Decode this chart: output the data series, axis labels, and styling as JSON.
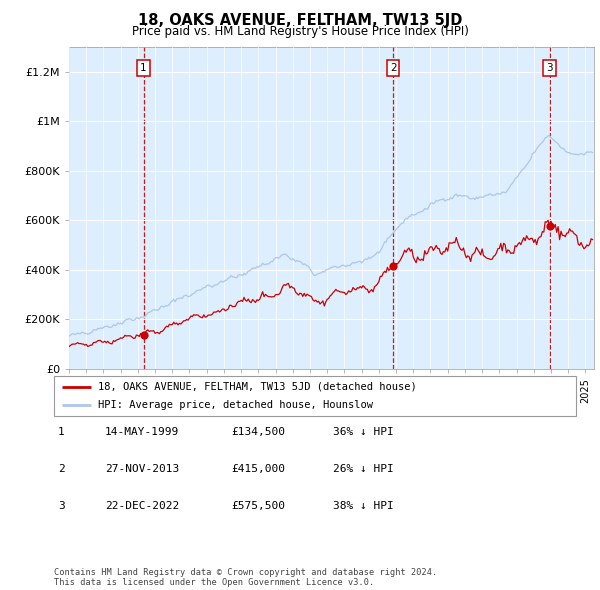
{
  "title": "18, OAKS AVENUE, FELTHAM, TW13 5JD",
  "subtitle": "Price paid vs. HM Land Registry's House Price Index (HPI)",
  "hpi_label": "HPI: Average price, detached house, Hounslow",
  "price_label": "18, OAKS AVENUE, FELTHAM, TW13 5JD (detached house)",
  "hpi_color": "#aec6e8",
  "price_color": "#cc0000",
  "dot_color": "#cc0000",
  "bg_color": "#ddeeff",
  "transactions": [
    {
      "num": 1,
      "date": "14-MAY-1999",
      "price": 134500,
      "pct": "36%",
      "dir": "↓"
    },
    {
      "num": 2,
      "date": "27-NOV-2013",
      "price": 415000,
      "pct": "26%",
      "dir": "↓"
    },
    {
      "num": 3,
      "date": "22-DEC-2022",
      "price": 575500,
      "pct": "38%",
      "dir": "↓"
    }
  ],
  "footer": "Contains HM Land Registry data © Crown copyright and database right 2024.\nThis data is licensed under the Open Government Licence v3.0.",
  "ylim": [
    0,
    1300000
  ],
  "yticks": [
    0,
    200000,
    400000,
    600000,
    800000,
    1000000,
    1200000
  ],
  "ytick_labels": [
    "£0",
    "£200K",
    "£400K",
    "£600K",
    "£800K",
    "£1M",
    "£1.2M"
  ],
  "start_year": 1995.0,
  "end_year": 2025.5
}
